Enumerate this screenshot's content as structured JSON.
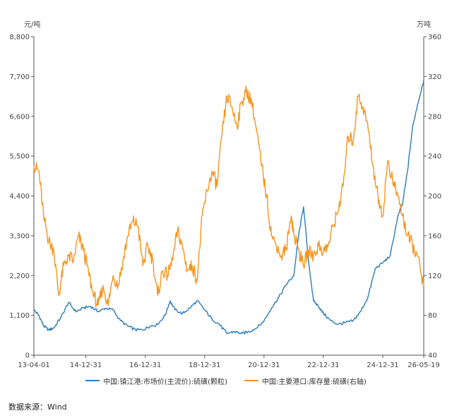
{
  "chart_data": {
    "type": "line",
    "left_unit": "元/吨",
    "right_unit": "万吨",
    "x_tick_labels": [
      "13-04-01",
      "14-12-31",
      "16-12-31",
      "18-12-31",
      "20-12-31",
      "22-12-31",
      "24-12-31",
      "26-05-19"
    ],
    "x_tick_dates": [
      "2013-04-01",
      "2014-12-31",
      "2016-12-31",
      "2018-12-31",
      "2020-12-31",
      "2022-12-31",
      "2024-12-31",
      "2026-05-19"
    ],
    "ylim_left": [
      0,
      8800
    ],
    "yticks_left": [
      "0",
      "1,100",
      "2,200",
      "3,300",
      "4,400",
      "5,500",
      "6,600",
      "7,700",
      "8,800"
    ],
    "ylim_right": [
      40,
      360
    ],
    "yticks_right": [
      "40",
      "80",
      "120",
      "160",
      "200",
      "240",
      "280",
      "320",
      "360"
    ],
    "grid": false,
    "legend_position": "bottom",
    "series": [
      {
        "name": "中国:镇江港:市场价(主流价):硫磺(颗粒)",
        "axis": "left",
        "color": "#2b7bb9",
        "points": [
          [
            "2013-04-01",
            1250
          ],
          [
            "2013-06-01",
            1100
          ],
          [
            "2013-08-01",
            800
          ],
          [
            "2013-10-01",
            700
          ],
          [
            "2013-12-01",
            750
          ],
          [
            "2014-03-01",
            1050
          ],
          [
            "2014-06-01",
            1450
          ],
          [
            "2014-09-01",
            1200
          ],
          [
            "2014-12-01",
            1300
          ],
          [
            "2015-03-01",
            1350
          ],
          [
            "2015-06-01",
            1200
          ],
          [
            "2015-09-01",
            1300
          ],
          [
            "2015-12-01",
            1250
          ],
          [
            "2016-03-01",
            950
          ],
          [
            "2016-06-01",
            800
          ],
          [
            "2016-09-01",
            700
          ],
          [
            "2016-12-01",
            700
          ],
          [
            "2017-03-01",
            800
          ],
          [
            "2017-06-01",
            850
          ],
          [
            "2017-09-01",
            1100
          ],
          [
            "2017-11-01",
            1500
          ],
          [
            "2018-01-01",
            1250
          ],
          [
            "2018-04-01",
            1150
          ],
          [
            "2018-07-01",
            1300
          ],
          [
            "2018-10-01",
            1500
          ],
          [
            "2019-01-01",
            1250
          ],
          [
            "2019-04-01",
            1000
          ],
          [
            "2019-07-01",
            850
          ],
          [
            "2019-10-01",
            600
          ],
          [
            "2020-01-01",
            650
          ],
          [
            "2020-04-01",
            600
          ],
          [
            "2020-07-01",
            650
          ],
          [
            "2020-10-01",
            750
          ],
          [
            "2021-01-01",
            950
          ],
          [
            "2021-04-01",
            1300
          ],
          [
            "2021-07-01",
            1600
          ],
          [
            "2021-10-01",
            1950
          ],
          [
            "2022-01-01",
            2200
          ],
          [
            "2022-03-01",
            3300
          ],
          [
            "2022-05-01",
            4100
          ],
          [
            "2022-07-01",
            2600
          ],
          [
            "2022-09-01",
            1500
          ],
          [
            "2022-11-01",
            1350
          ],
          [
            "2023-01-01",
            1150
          ],
          [
            "2023-04-01",
            950
          ],
          [
            "2023-07-01",
            850
          ],
          [
            "2023-10-01",
            900
          ],
          [
            "2024-01-01",
            950
          ],
          [
            "2024-04-01",
            1200
          ],
          [
            "2024-07-01",
            1600
          ],
          [
            "2024-10-01",
            2400
          ],
          [
            "2025-01-01",
            2550
          ],
          [
            "2025-04-01",
            2750
          ],
          [
            "2025-07-01",
            3800
          ],
          [
            "2025-09-01",
            4200
          ],
          [
            "2025-11-01",
            5100
          ],
          [
            "2026-01-01",
            6300
          ],
          [
            "2026-03-01",
            6900
          ],
          [
            "2026-05-19",
            7600
          ]
        ]
      },
      {
        "name": "中国:主要港口:库存量:硫磺(右轴)",
        "axis": "right",
        "color": "#f7941d",
        "points": [
          [
            "2013-04-01",
            230
          ],
          [
            "2013-06-01",
            225
          ],
          [
            "2013-08-01",
            178
          ],
          [
            "2013-10-01",
            155
          ],
          [
            "2013-12-01",
            145
          ],
          [
            "2014-02-01",
            100
          ],
          [
            "2014-04-01",
            130
          ],
          [
            "2014-06-01",
            140
          ],
          [
            "2014-08-01",
            135
          ],
          [
            "2014-10-01",
            160
          ],
          [
            "2014-12-01",
            145
          ],
          [
            "2015-02-01",
            125
          ],
          [
            "2015-04-01",
            100
          ],
          [
            "2015-06-01",
            90
          ],
          [
            "2015-08-01",
            110
          ],
          [
            "2015-10-01",
            90
          ],
          [
            "2015-12-01",
            120
          ],
          [
            "2016-02-01",
            110
          ],
          [
            "2016-04-01",
            135
          ],
          [
            "2016-06-01",
            160
          ],
          [
            "2016-08-01",
            175
          ],
          [
            "2016-10-01",
            170
          ],
          [
            "2016-12-01",
            130
          ],
          [
            "2017-02-01",
            150
          ],
          [
            "2017-04-01",
            135
          ],
          [
            "2017-06-01",
            100
          ],
          [
            "2017-08-01",
            125
          ],
          [
            "2017-10-01",
            120
          ],
          [
            "2017-12-01",
            135
          ],
          [
            "2018-02-01",
            165
          ],
          [
            "2018-04-01",
            150
          ],
          [
            "2018-06-01",
            125
          ],
          [
            "2018-08-01",
            130
          ],
          [
            "2018-10-01",
            115
          ],
          [
            "2018-12-01",
            180
          ],
          [
            "2019-02-01",
            205
          ],
          [
            "2019-04-01",
            225
          ],
          [
            "2019-06-01",
            210
          ],
          [
            "2019-08-01",
            260
          ],
          [
            "2019-10-01",
            300
          ],
          [
            "2019-12-01",
            290
          ],
          [
            "2020-02-01",
            270
          ],
          [
            "2020-04-01",
            295
          ],
          [
            "2020-06-01",
            305
          ],
          [
            "2020-08-01",
            295
          ],
          [
            "2020-10-01",
            265
          ],
          [
            "2020-12-01",
            230
          ],
          [
            "2021-02-01",
            200
          ],
          [
            "2021-04-01",
            160
          ],
          [
            "2021-06-01",
            150
          ],
          [
            "2021-08-01",
            140
          ],
          [
            "2021-10-01",
            148
          ],
          [
            "2021-12-01",
            180
          ],
          [
            "2022-01-01",
            162
          ],
          [
            "2022-03-01",
            145
          ],
          [
            "2022-05-01",
            130
          ],
          [
            "2022-07-01",
            145
          ],
          [
            "2022-09-01",
            140
          ],
          [
            "2022-11-01",
            150
          ],
          [
            "2023-01-01",
            145
          ],
          [
            "2023-03-01",
            150
          ],
          [
            "2023-05-01",
            170
          ],
          [
            "2023-07-01",
            185
          ],
          [
            "2023-09-01",
            210
          ],
          [
            "2023-11-01",
            260
          ],
          [
            "2024-01-01",
            255
          ],
          [
            "2024-03-01",
            300
          ],
          [
            "2024-05-01",
            290
          ],
          [
            "2024-07-01",
            270
          ],
          [
            "2024-09-01",
            230
          ],
          [
            "2024-11-01",
            200
          ],
          [
            "2025-01-01",
            180
          ],
          [
            "2025-03-01",
            235
          ],
          [
            "2025-05-01",
            215
          ],
          [
            "2025-07-01",
            200
          ],
          [
            "2025-09-01",
            180
          ],
          [
            "2025-11-01",
            160
          ],
          [
            "2026-01-01",
            150
          ],
          [
            "2026-03-01",
            140
          ],
          [
            "2026-05-19",
            110
          ]
        ]
      }
    ]
  },
  "source_text": "数据来源：Wind"
}
